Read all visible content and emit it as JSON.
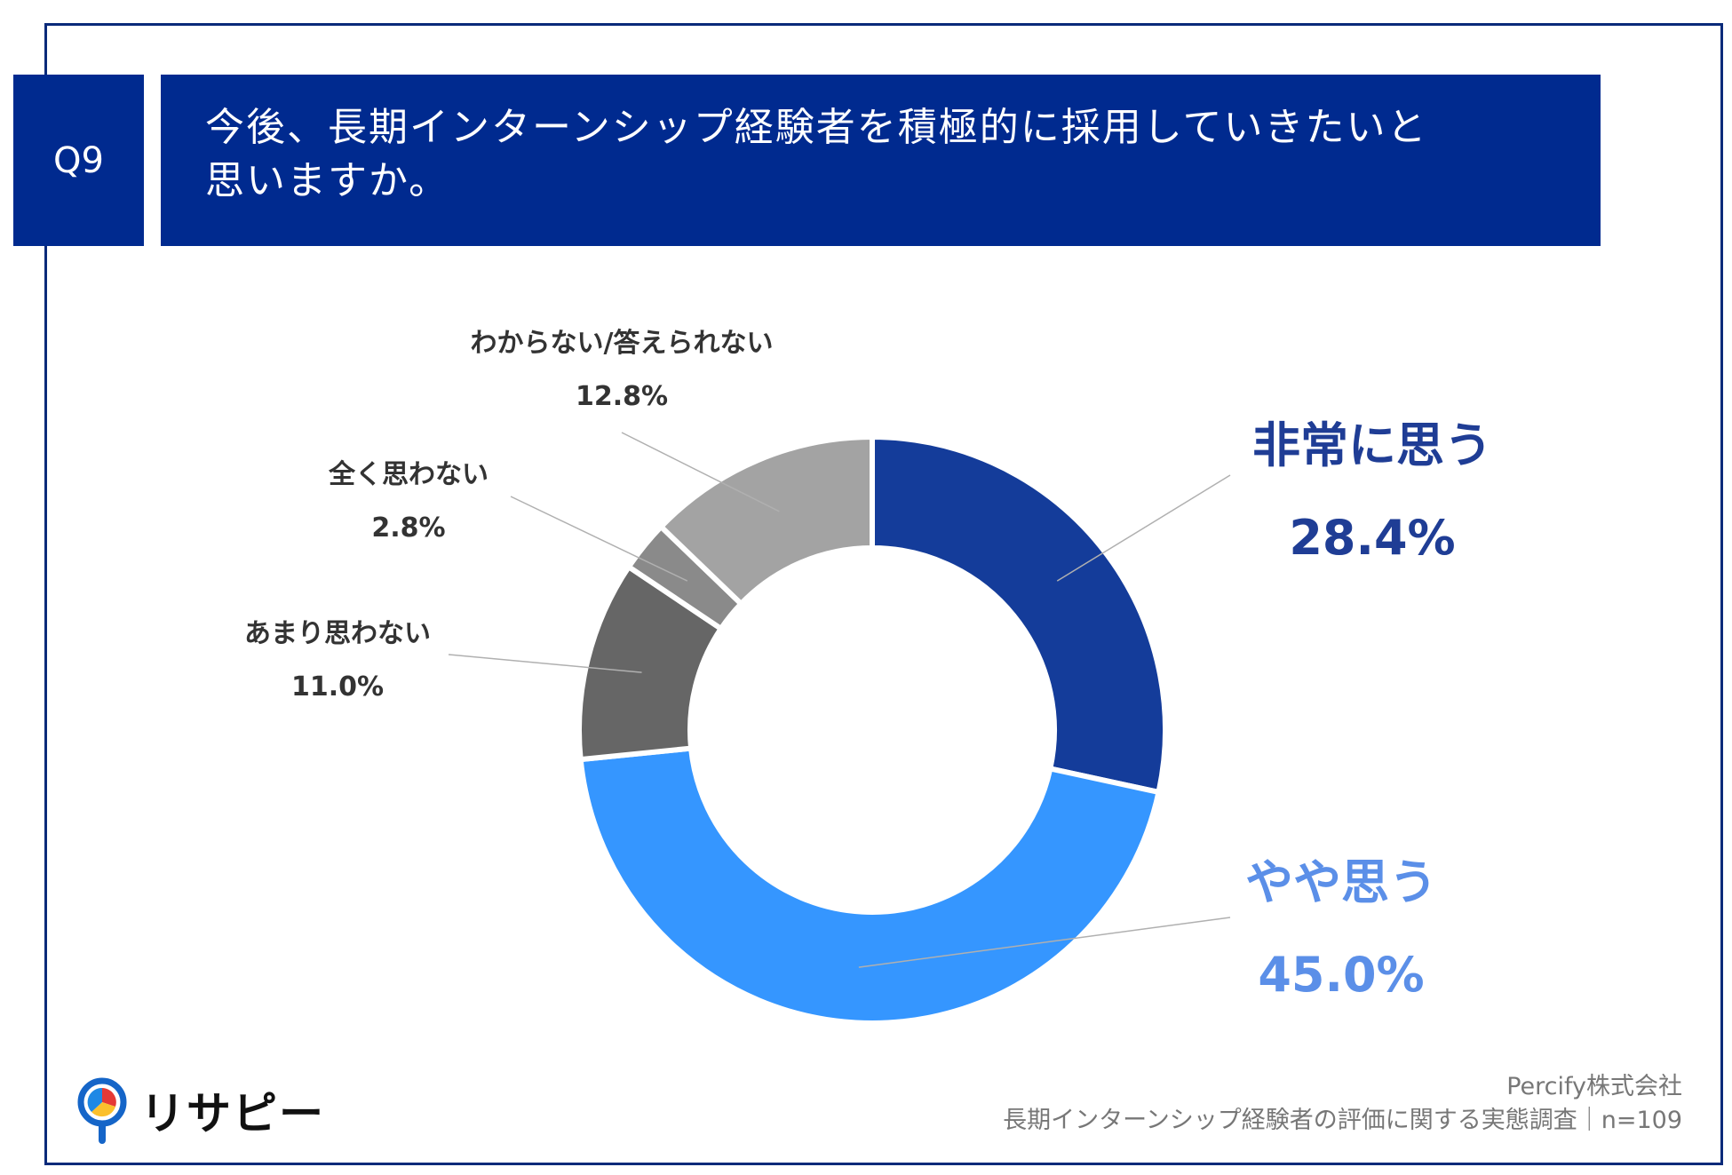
{
  "question": {
    "number": "Q9",
    "title_line1": "今後、長期インターンシップ経験者を積極的に採用していきたいと",
    "title_line2": "思いますか。"
  },
  "chart_data": {
    "type": "pie",
    "variant": "donut",
    "title": "今後、長期インターンシップ経験者を積極的に採用していきたいと思いますか。",
    "categories": [
      "非常に思う",
      "やや思う",
      "あまり思わない",
      "全く思わない",
      "わからない/答えられない"
    ],
    "values": [
      28.4,
      45.0,
      11.0,
      2.8,
      12.8
    ],
    "labels": [
      "28.4%",
      "45.0%",
      "11.0%",
      "2.8%",
      "12.8%"
    ],
    "colors": [
      "#143c9a",
      "#3596ff",
      "#666666",
      "#8a8a8a",
      "#a3a3a3"
    ],
    "label_colors": [
      "#1f3d95",
      "#5b8fe8",
      "#333333",
      "#333333",
      "#333333"
    ],
    "start_angle_deg": 0,
    "direction": "clockwise"
  },
  "logo": {
    "icon": "map-pin-icon",
    "text": "リサピー"
  },
  "footer": {
    "company": "Percify株式会社",
    "survey": "長期インターンシップ経験者の評価に関する実態調査｜n=109"
  }
}
